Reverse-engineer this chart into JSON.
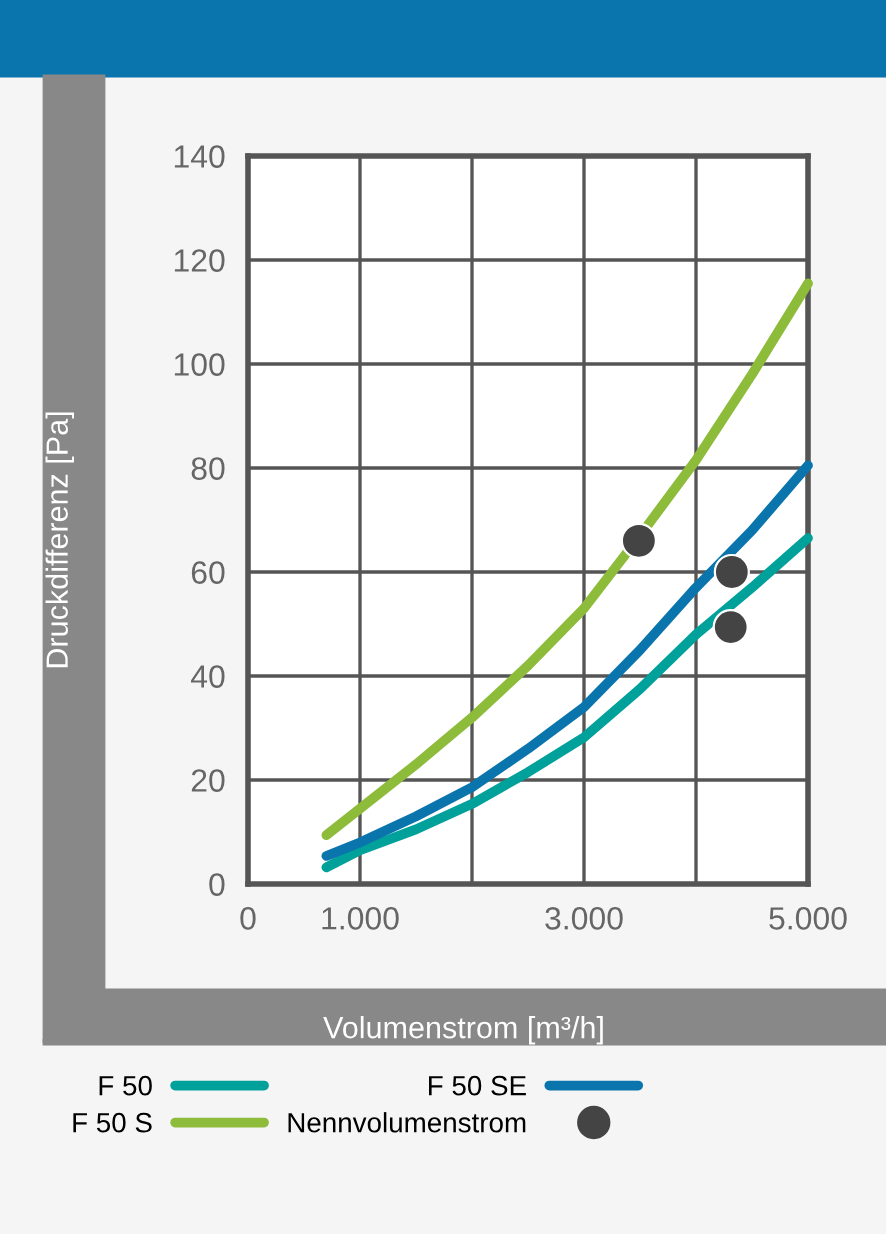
{
  "chart_data": {
    "type": "line",
    "xlabel": "Volumenstrom [m³/h]",
    "ylabel": "Druckdifferenz [Pa]",
    "xlim": [
      0,
      5000
    ],
    "ylim": [
      0,
      140
    ],
    "xticks": [
      0,
      {
        "value": 1000,
        "label": "1.000"
      },
      {
        "value": 2000,
        "label": null
      },
      {
        "value": 3000,
        "label": "3.000"
      },
      {
        "value": 4000,
        "label": null
      },
      {
        "value": 5000,
        "label": "5.000"
      }
    ],
    "yticks": [
      0,
      20,
      40,
      60,
      80,
      100,
      120,
      140
    ],
    "grid": true,
    "legend": "bottom",
    "line_style": "solid",
    "marker": "none",
    "series": [
      {
        "name": "F 50",
        "color": "#00a19a",
        "x": [
          700,
          1000,
          1500,
          2000,
          2500,
          3000,
          3500,
          4000,
          4500,
          5000
        ],
        "values": [
          3.2,
          6.5,
          10.5,
          15.4,
          21.5,
          28.2,
          37.5,
          48,
          57,
          66.5
        ]
      },
      {
        "name": "F 50 S",
        "color": "#8dbb3a",
        "x": [
          700,
          1000,
          1500,
          2000,
          2500,
          3000,
          3500,
          4000,
          4500,
          5000
        ],
        "values": [
          9.4,
          14.5,
          23,
          32,
          42,
          53,
          67,
          81.5,
          98,
          115.5
        ]
      },
      {
        "name": "F 50 SE",
        "color": "#0a75ad",
        "x": [
          700,
          1000,
          1500,
          2000,
          2500,
          3000,
          3500,
          4000,
          4500,
          5000
        ],
        "values": [
          5.4,
          8,
          13,
          18.6,
          26,
          34,
          45,
          57,
          68,
          80.5
        ]
      },
      {
        "name": "Nennvolumenstrom",
        "type": "scatter",
        "marker": "circle",
        "color": "#444444",
        "x": [
          3490,
          4320,
          4310
        ],
        "values": [
          66,
          60,
          49.4
        ]
      }
    ]
  }
}
